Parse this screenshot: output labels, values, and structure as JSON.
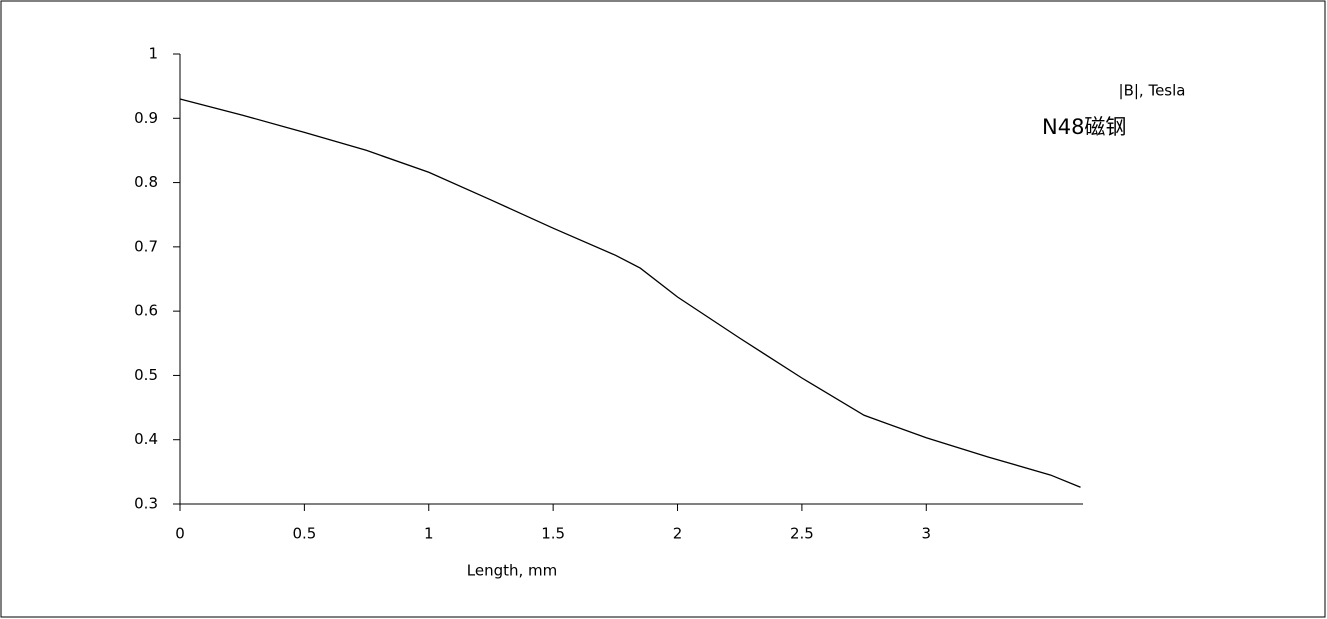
{
  "chart_data": {
    "type": "line",
    "x_label": "Length, mm",
    "annotations": [
      "|B|, Tesla",
      "N48磁钢"
    ],
    "x": [
      0,
      0.25,
      0.5,
      0.75,
      1.0,
      1.25,
      1.5,
      1.75,
      1.85,
      2.0,
      2.25,
      2.5,
      2.75,
      3.0,
      3.25,
      3.5,
      3.62
    ],
    "series": [
      {
        "color": "#000000",
        "values": [
          0.93,
          0.905,
          0.878,
          0.85,
          0.816,
          0.773,
          0.729,
          0.687,
          0.667,
          0.622,
          0.558,
          0.496,
          0.438,
          0.403,
          0.373,
          0.345,
          0.326
        ]
      }
    ],
    "xlim": [
      0,
      3.63
    ],
    "xticks": [
      0,
      0.5,
      1,
      1.5,
      2,
      2.5,
      3
    ],
    "ylim": [
      0.3,
      1
    ],
    "yticks": [
      0.3,
      0.4,
      0.5,
      0.6,
      0.7,
      0.8,
      0.9,
      1
    ],
    "grid": false
  }
}
